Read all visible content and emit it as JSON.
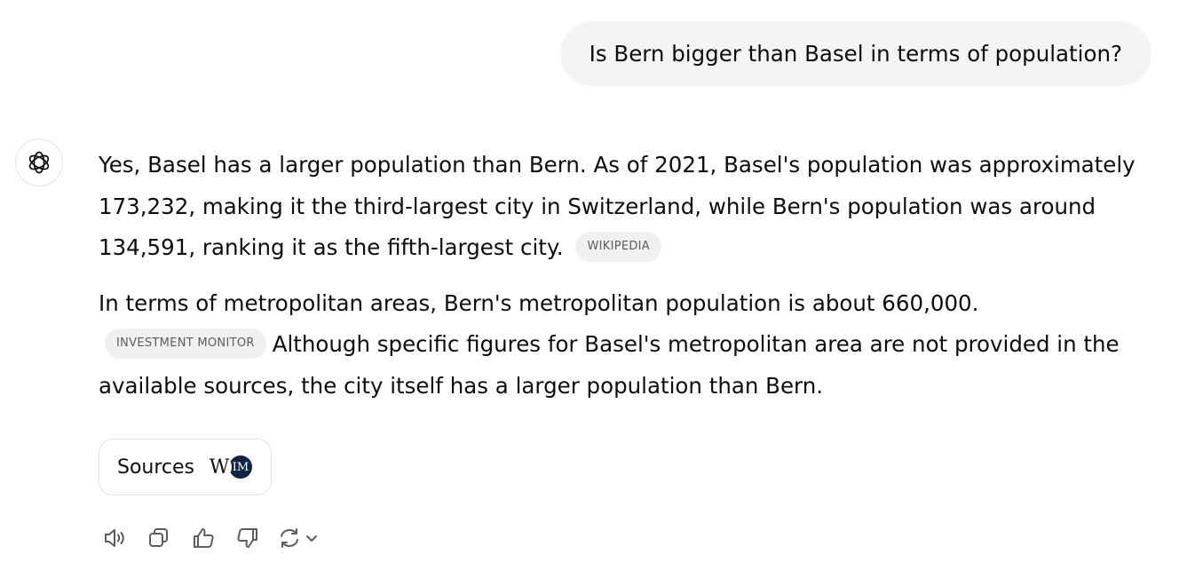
{
  "user_message": {
    "text": "Is Bern bigger than Basel in terms of population?"
  },
  "assistant_message": {
    "paragraph1": {
      "text": "Yes, Basel has a larger population than Bern. As of 2021, Basel's population was approximately 173,232, making it the third-largest city in Switzerland, while Bern's population was around 134,591, ranking it as the fifth-largest city.",
      "citation": "WIKIPEDIA"
    },
    "paragraph2": {
      "text_before": "In terms of metropolitan areas, Bern's metropolitan population is about 660,000.",
      "citation": "INVESTMENT MONITOR",
      "text_after": "Although specific figures for Basel's metropolitan area are not provided in the available sources, the city itself has a larger population than Bern."
    }
  },
  "sources": {
    "label": "Sources",
    "favicon_1": "W",
    "favicon_2": "IM"
  },
  "icons": {
    "avatar": "openai-logo-icon",
    "read_aloud": "speaker-icon",
    "copy": "copy-icon",
    "good": "thumbs-up-icon",
    "bad": "thumbs-down-icon",
    "regenerate": "refresh-icon",
    "regenerate_menu": "chevron-down-icon"
  },
  "colors": {
    "user_bubble": "#f4f4f4",
    "citation_bg": "#f0f0f0",
    "citation_text": "#5d5d5d",
    "favicon_im_bg": "#0f2545"
  }
}
